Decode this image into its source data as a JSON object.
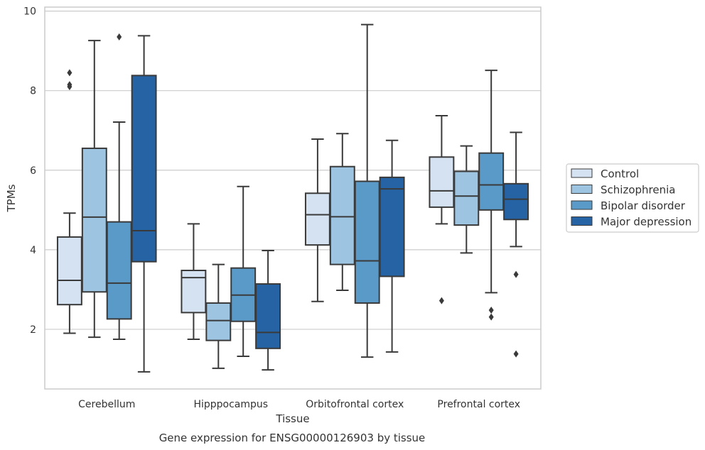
{
  "chart_data": {
    "type": "box",
    "title": "",
    "caption": "Gene expression for ENSG00000126903 by tissue",
    "xlabel": "Tissue",
    "ylabel": "TPMs",
    "ylim": [
      0.5,
      10.1
    ],
    "yticks": [
      2,
      4,
      6,
      8,
      10
    ],
    "grid": true,
    "legend_position": "right",
    "categories": [
      "Cerebellum",
      "Hipppocampus",
      "Orbitofrontal cortex",
      "Prefrontal cortex"
    ],
    "series": [
      {
        "name": "Control",
        "color": "#d4e2f1",
        "boxes": [
          {
            "whislo": 1.9,
            "q1": 2.62,
            "med": 3.23,
            "q3": 4.32,
            "whishi": 4.92,
            "fliers": [
              8.1,
              8.15,
              8.45
            ]
          },
          {
            "whislo": 1.75,
            "q1": 2.42,
            "med": 3.3,
            "q3": 3.48,
            "whishi": 4.65,
            "fliers": []
          },
          {
            "whislo": 2.7,
            "q1": 4.12,
            "med": 4.88,
            "q3": 5.42,
            "whishi": 6.78,
            "fliers": []
          },
          {
            "whislo": 4.65,
            "q1": 5.07,
            "med": 5.48,
            "q3": 6.33,
            "whishi": 7.37,
            "fliers": [
              2.72
            ]
          }
        ]
      },
      {
        "name": "Schizophrenia",
        "color": "#9dc4e0",
        "boxes": [
          {
            "whislo": 1.8,
            "q1": 2.94,
            "med": 4.82,
            "q3": 6.55,
            "whishi": 9.26,
            "fliers": []
          },
          {
            "whislo": 1.02,
            "q1": 1.72,
            "med": 2.22,
            "q3": 2.66,
            "whishi": 3.63,
            "fliers": []
          },
          {
            "whislo": 2.98,
            "q1": 3.63,
            "med": 4.83,
            "q3": 6.09,
            "whishi": 6.92,
            "fliers": []
          },
          {
            "whislo": 3.92,
            "q1": 4.62,
            "med": 5.35,
            "q3": 5.97,
            "whishi": 6.61,
            "fliers": []
          }
        ]
      },
      {
        "name": "Bipolar disorder",
        "color": "#5a9ac8",
        "boxes": [
          {
            "whislo": 1.75,
            "q1": 2.26,
            "med": 3.16,
            "q3": 4.7,
            "whishi": 7.21,
            "fliers": [
              9.35
            ]
          },
          {
            "whislo": 1.32,
            "q1": 2.2,
            "med": 2.86,
            "q3": 3.54,
            "whishi": 5.59,
            "fliers": []
          },
          {
            "whislo": 1.3,
            "q1": 2.66,
            "med": 3.72,
            "q3": 5.72,
            "whishi": 9.66,
            "fliers": []
          },
          {
            "whislo": 2.92,
            "q1": 5.0,
            "med": 5.63,
            "q3": 6.43,
            "whishi": 8.51,
            "fliers": [
              2.31,
              2.48
            ]
          }
        ]
      },
      {
        "name": "Major depression",
        "color": "#2563a4",
        "boxes": [
          {
            "whislo": 0.93,
            "q1": 3.7,
            "med": 4.48,
            "q3": 8.38,
            "whishi": 9.38,
            "fliers": []
          },
          {
            "whislo": 0.98,
            "q1": 1.52,
            "med": 1.92,
            "q3": 3.14,
            "whishi": 3.98,
            "fliers": []
          },
          {
            "whislo": 1.43,
            "q1": 3.33,
            "med": 5.53,
            "q3": 5.82,
            "whishi": 6.75,
            "fliers": []
          },
          {
            "whislo": 4.08,
            "q1": 4.76,
            "med": 5.27,
            "q3": 5.66,
            "whishi": 6.95,
            "fliers": [
              1.38,
              3.38
            ]
          }
        ]
      }
    ]
  }
}
